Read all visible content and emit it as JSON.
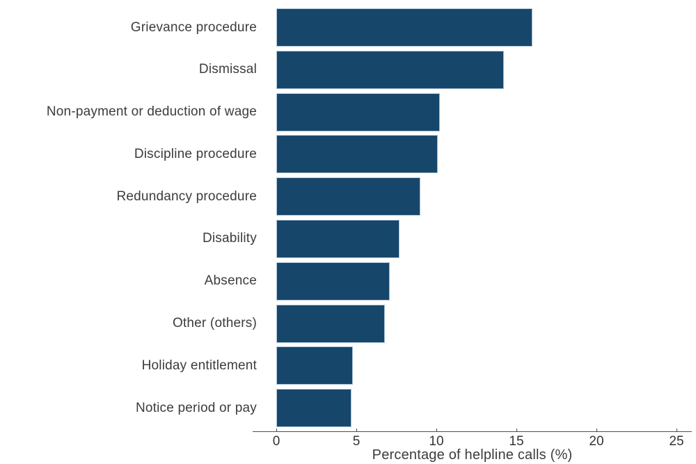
{
  "chart_data": {
    "type": "bar",
    "orientation": "horizontal",
    "title": "",
    "xlabel": "Percentage of helpline calls (%)",
    "ylabel": "",
    "categories": [
      "Grievance procedure",
      "Dismissal",
      "Non-payment or deduction of wage",
      "Discipline procedure",
      "Redundancy procedure",
      "Disability",
      "Absence",
      "Other (others)",
      "Holiday entitlement",
      "Notice period or pay"
    ],
    "values": [
      16.0,
      14.2,
      10.2,
      10.1,
      9.0,
      7.7,
      7.1,
      6.8,
      4.8,
      4.7
    ],
    "xlim": [
      0,
      26
    ],
    "xticks": [
      0,
      5,
      10,
      15,
      20,
      25
    ],
    "grid": false,
    "legend": "none",
    "bar_color": "#17466B",
    "bar_border_color": "#AFC5D8",
    "axis_color": "#4D4D4D",
    "text_color": "#3C3C3C"
  }
}
